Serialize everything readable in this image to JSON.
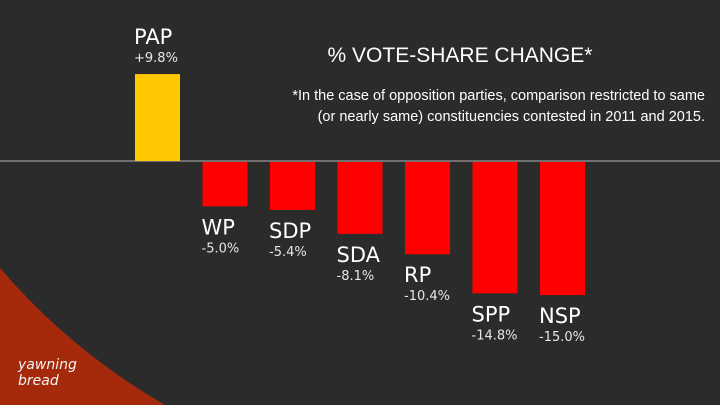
{
  "title": "% VOTE-SHARE CHANGE*",
  "footnote_line1": "*In the case of opposition parties, comparison restricted to same",
  "footnote_line2": "(or nearly same) constituencies contested in 2011 and 2015.",
  "brand_line1": "yawning",
  "brand_line2": "bread",
  "colors": {
    "background": "#2b2b2b",
    "positive": "#ffc800",
    "negative": "#ff0000",
    "accent_arc": "#a52a0c",
    "baseline": "#9a9a9a"
  },
  "chart_data": {
    "type": "bar",
    "categories": [
      "PAP",
      "WP",
      "SDP",
      "SDA",
      "RP",
      "SPP",
      "NSP"
    ],
    "values": [
      9.8,
      -5.0,
      -5.4,
      -8.1,
      -10.4,
      -14.8,
      -15.0
    ],
    "value_labels": [
      "+9.8%",
      "-5.0%",
      "-5.4%",
      "-8.1%",
      "-10.4%",
      "-14.8%",
      "-15.0%"
    ],
    "title": "% VOTE-SHARE CHANGE*",
    "xlabel": "",
    "ylabel": "",
    "grid": false,
    "legend": "none"
  }
}
